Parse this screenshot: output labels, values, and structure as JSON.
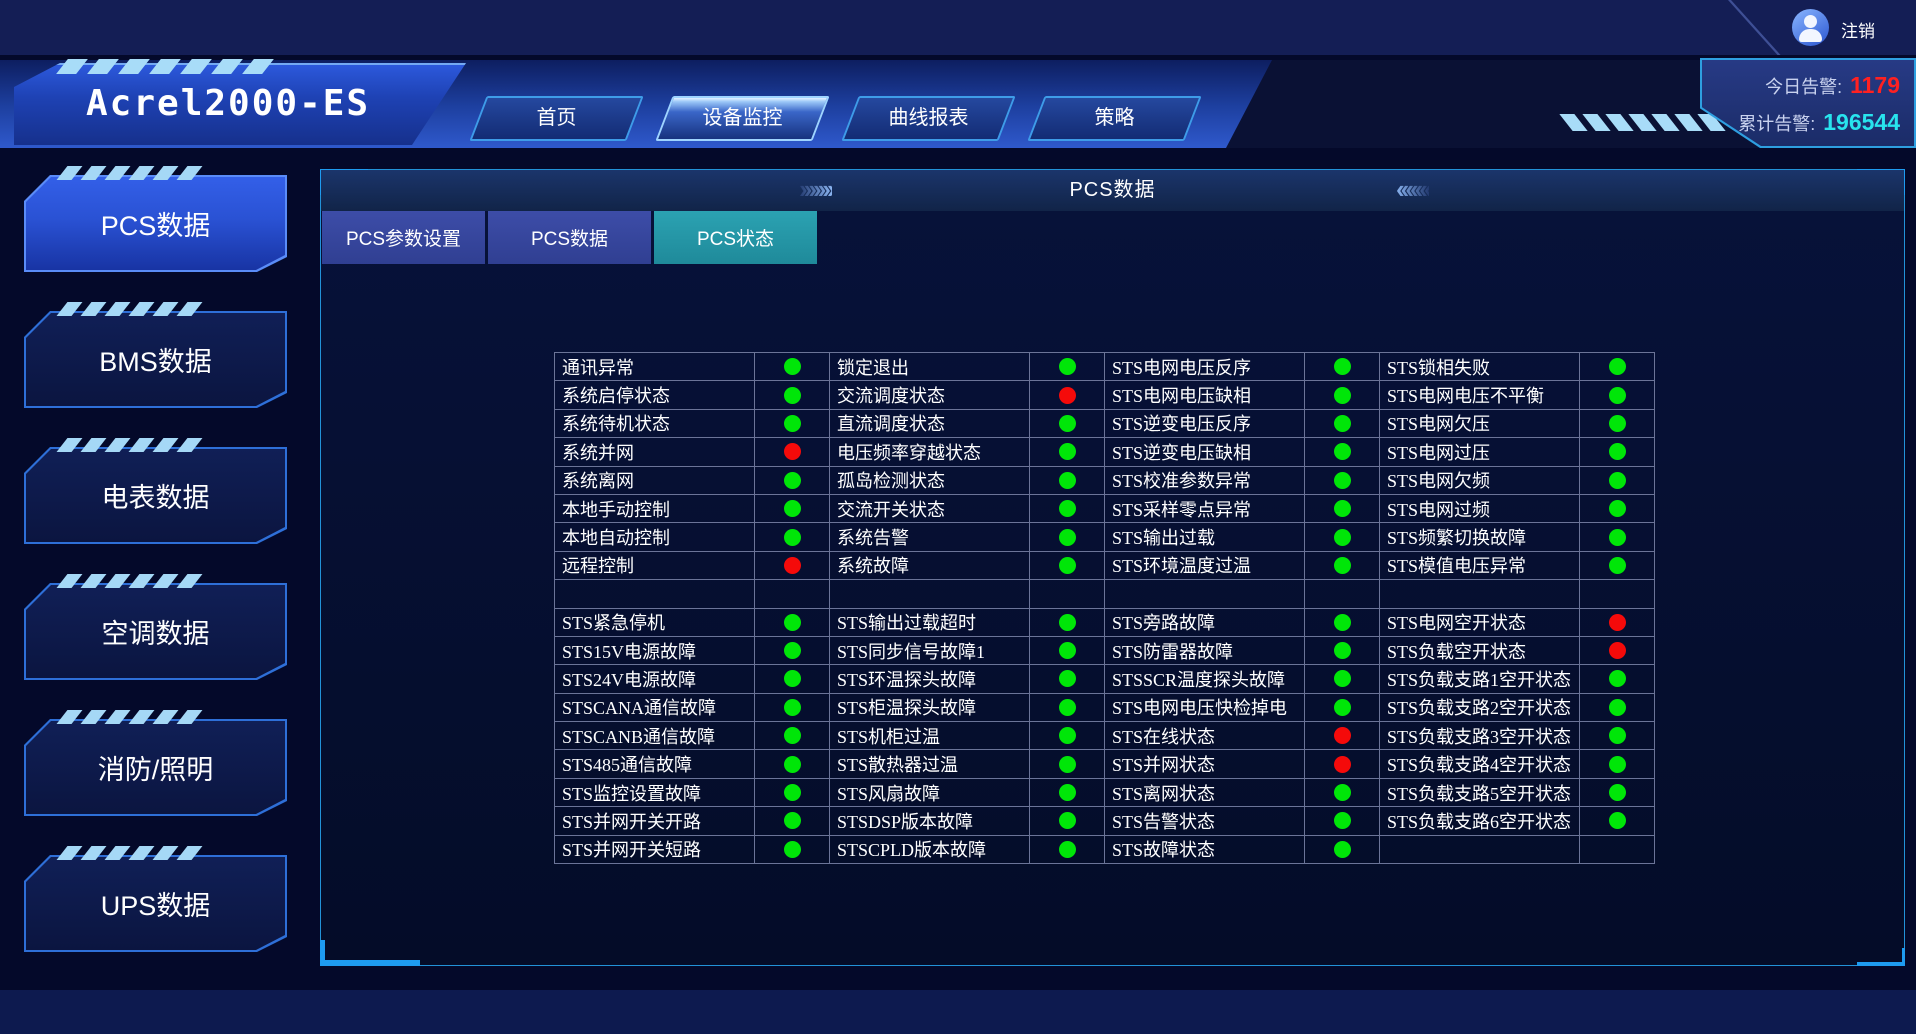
{
  "topbar": {
    "logout_label": "注销"
  },
  "header": {
    "logo": "Acrel2000-ES",
    "nav": [
      {
        "label": "首页",
        "active": false
      },
      {
        "label": "设备监控",
        "active": true
      },
      {
        "label": "曲线报表",
        "active": false
      },
      {
        "label": "策略",
        "active": false
      }
    ],
    "alarms": {
      "today_label": "今日告警:",
      "today_value": "1179",
      "total_label": "累计告警:",
      "total_value": "196544"
    }
  },
  "sidebar": {
    "items": [
      {
        "label": "PCS数据",
        "active": true
      },
      {
        "label": "BMS数据",
        "active": false
      },
      {
        "label": "电表数据",
        "active": false
      },
      {
        "label": "空调数据",
        "active": false
      },
      {
        "label": "消防/照明",
        "active": false
      },
      {
        "label": "UPS数据",
        "active": false
      }
    ]
  },
  "panel": {
    "title": "PCS数据",
    "left_chevrons": "›››››››",
    "right_chevrons": "‹‹‹‹‹‹‹",
    "tabs": [
      {
        "label": "PCS参数设置",
        "active": false
      },
      {
        "label": "PCS数据",
        "active": false
      },
      {
        "label": "PCS状态",
        "active": true
      }
    ],
    "table": {
      "rows": [
        [
          {
            "label": "通讯异常",
            "status": "green"
          },
          {
            "label": "锁定退出",
            "status": "green"
          },
          {
            "label": "STS电网电压反序",
            "status": "green"
          },
          {
            "label": "STS锁相失败",
            "status": "green"
          }
        ],
        [
          {
            "label": "系统启停状态",
            "status": "green"
          },
          {
            "label": "交流调度状态",
            "status": "red"
          },
          {
            "label": "STS电网电压缺相",
            "status": "green"
          },
          {
            "label": "STS电网电压不平衡",
            "status": "green"
          }
        ],
        [
          {
            "label": "系统待机状态",
            "status": "green"
          },
          {
            "label": "直流调度状态",
            "status": "green"
          },
          {
            "label": "STS逆变电压反序",
            "status": "green"
          },
          {
            "label": "STS电网欠压",
            "status": "green"
          }
        ],
        [
          {
            "label": "系统并网",
            "status": "red"
          },
          {
            "label": "电压频率穿越状态",
            "status": "green"
          },
          {
            "label": "STS逆变电压缺相",
            "status": "green"
          },
          {
            "label": "STS电网过压",
            "status": "green"
          }
        ],
        [
          {
            "label": "系统离网",
            "status": "green"
          },
          {
            "label": "孤岛检测状态",
            "status": "green"
          },
          {
            "label": "STS校准参数异常",
            "status": "green"
          },
          {
            "label": "STS电网欠频",
            "status": "green"
          }
        ],
        [
          {
            "label": "本地手动控制",
            "status": "green"
          },
          {
            "label": "交流开关状态",
            "status": "green"
          },
          {
            "label": "STS采样零点异常",
            "status": "green"
          },
          {
            "label": "STS电网过频",
            "status": "green"
          }
        ],
        [
          {
            "label": "本地自动控制",
            "status": "green"
          },
          {
            "label": "系统告警",
            "status": "green"
          },
          {
            "label": "STS输出过载",
            "status": "green"
          },
          {
            "label": "STS频繁切换故障",
            "status": "green"
          }
        ],
        [
          {
            "label": "远程控制",
            "status": "red"
          },
          {
            "label": "系统故障",
            "status": "green"
          },
          {
            "label": "STS环境温度过温",
            "status": "green"
          },
          {
            "label": "STS模值电压异常",
            "status": "green"
          }
        ],
        [
          {
            "label": "",
            "status": ""
          },
          {
            "label": "",
            "status": ""
          },
          {
            "label": "",
            "status": ""
          },
          {
            "label": "",
            "status": ""
          }
        ],
        [
          {
            "label": "STS紧急停机",
            "status": "green"
          },
          {
            "label": "STS输出过载超时",
            "status": "green"
          },
          {
            "label": "STS旁路故障",
            "status": "green"
          },
          {
            "label": "STS电网空开状态",
            "status": "red"
          }
        ],
        [
          {
            "label": "STS15V电源故障",
            "status": "green"
          },
          {
            "label": "STS同步信号故障1",
            "status": "green"
          },
          {
            "label": "STS防雷器故障",
            "status": "green"
          },
          {
            "label": "STS负载空开状态",
            "status": "red"
          }
        ],
        [
          {
            "label": "STS24V电源故障",
            "status": "green"
          },
          {
            "label": "STS环温探头故障",
            "status": "green"
          },
          {
            "label": "STSSCR温度探头故障",
            "status": "green"
          },
          {
            "label": "STS负载支路1空开状态",
            "status": "green"
          }
        ],
        [
          {
            "label": "STSCANA通信故障",
            "status": "green"
          },
          {
            "label": "STS柜温探头故障",
            "status": "green"
          },
          {
            "label": "STS电网电压快检掉电",
            "status": "green"
          },
          {
            "label": "STS负载支路2空开状态",
            "status": "green"
          }
        ],
        [
          {
            "label": "STSCANB通信故障",
            "status": "green"
          },
          {
            "label": "STS机柜过温",
            "status": "green"
          },
          {
            "label": "STS在线状态",
            "status": "red"
          },
          {
            "label": "STS负载支路3空开状态",
            "status": "green"
          }
        ],
        [
          {
            "label": "STS485通信故障",
            "status": "green"
          },
          {
            "label": "STS散热器过温",
            "status": "green"
          },
          {
            "label": "STS并网状态",
            "status": "red"
          },
          {
            "label": "STS负载支路4空开状态",
            "status": "green"
          }
        ],
        [
          {
            "label": "STS监控设置故障",
            "status": "green"
          },
          {
            "label": "STS风扇故障",
            "status": "green"
          },
          {
            "label": "STS离网状态",
            "status": "green"
          },
          {
            "label": "STS负载支路5空开状态",
            "status": "green"
          }
        ],
        [
          {
            "label": "STS并网开关开路",
            "status": "green"
          },
          {
            "label": "STSDSP版本故障",
            "status": "green"
          },
          {
            "label": "STS告警状态",
            "status": "green"
          },
          {
            "label": "STS负载支路6空开状态",
            "status": "green"
          }
        ],
        [
          {
            "label": "STS并网开关短路",
            "status": "green"
          },
          {
            "label": "STSCPLD版本故障",
            "status": "green"
          },
          {
            "label": "STS故障状态",
            "status": "green"
          },
          {
            "label": "",
            "status": ""
          }
        ]
      ]
    }
  },
  "colors": {
    "status_green": "#00e608",
    "status_red": "#f50a0a"
  }
}
